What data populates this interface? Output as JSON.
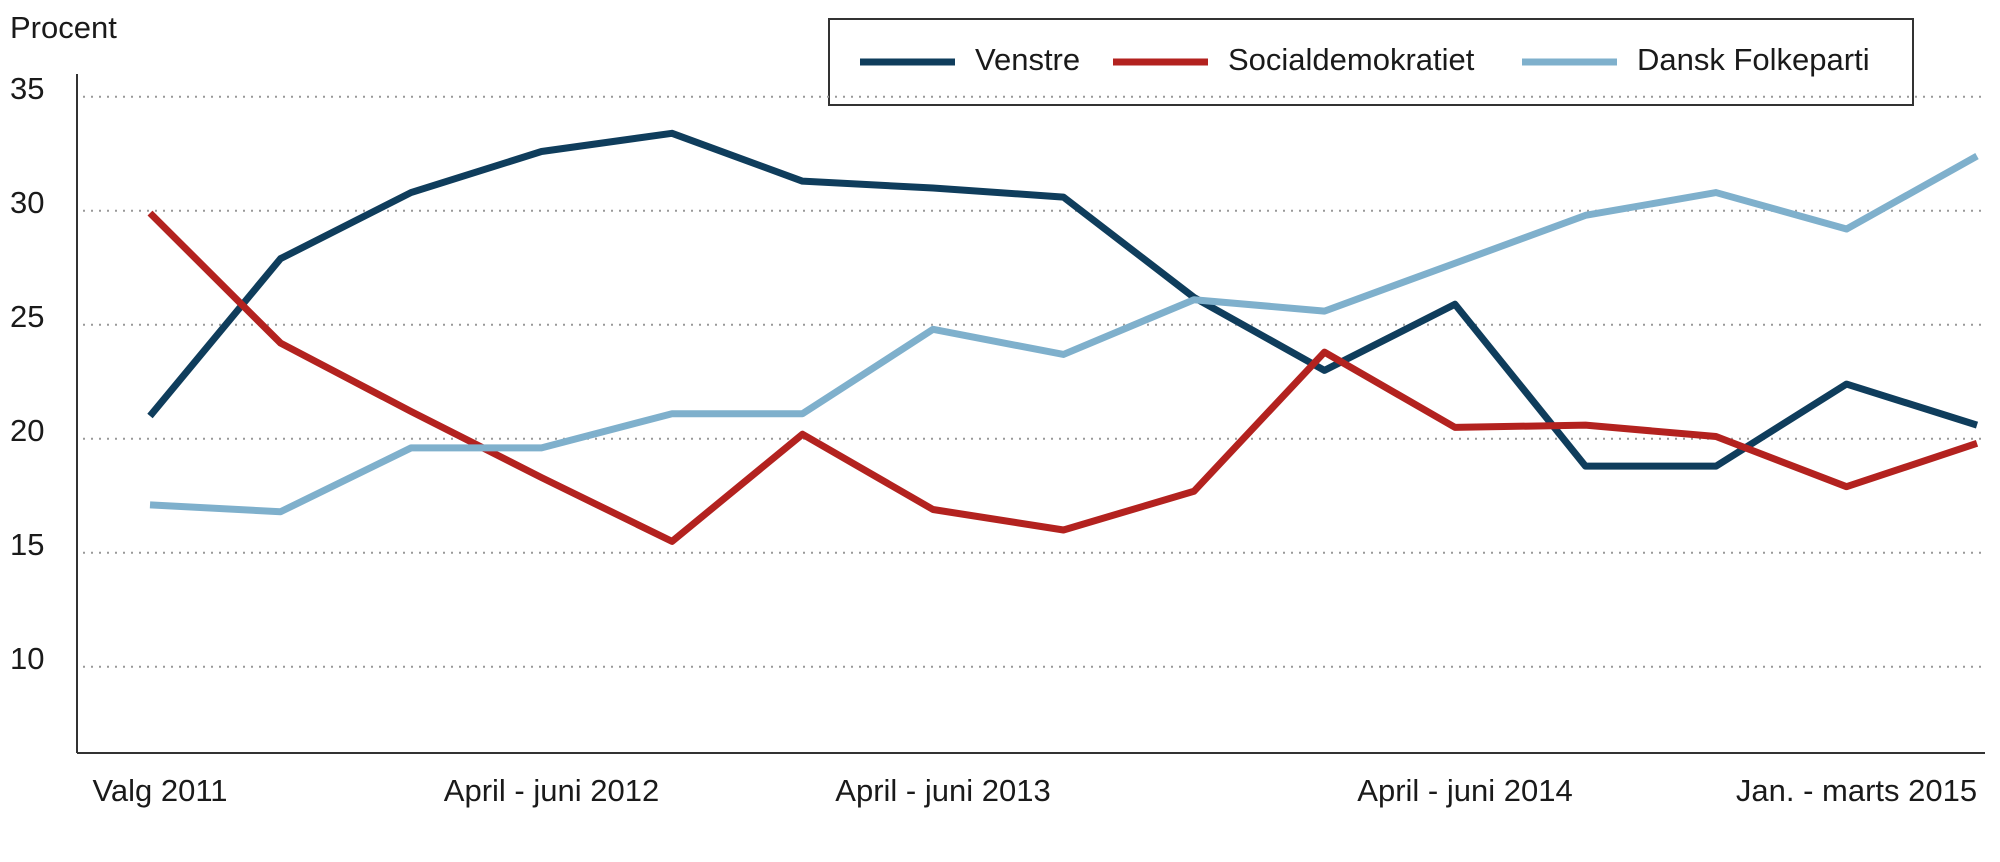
{
  "chart_data": {
    "type": "line",
    "y_label": "Procent",
    "categories": [
      "Valg 2011",
      null,
      null,
      "April - juni 2012",
      null,
      null,
      "April - juni 2013",
      null,
      null,
      null,
      "April - juni 2014",
      null,
      null,
      "Jan. - marts 2015",
      null
    ],
    "series": [
      {
        "name": "Venstre",
        "color": "#0f3d5c",
        "values": [
          21.0,
          27.9,
          30.8,
          32.6,
          33.4,
          31.3,
          31.0,
          30.6,
          26.2,
          23.0,
          25.9,
          18.8,
          18.8,
          22.4,
          20.6
        ]
      },
      {
        "name": "Socialdemokratiet",
        "color": "#b3221f",
        "values": [
          29.9,
          24.2,
          21.2,
          18.3,
          15.5,
          20.2,
          16.9,
          16.0,
          17.7,
          23.8,
          20.5,
          20.6,
          20.1,
          17.9,
          19.8
        ]
      },
      {
        "name": "Dansk Folkeparti",
        "color": "#7fb0cc",
        "values": [
          17.1,
          16.8,
          19.6,
          19.6,
          21.1,
          21.1,
          24.8,
          23.7,
          26.1,
          25.6,
          27.7,
          29.8,
          30.8,
          29.2,
          32.4
        ]
      }
    ],
    "ylim": [
      6,
      36
    ],
    "yticks": [
      10,
      15,
      20,
      25,
      30,
      35
    ],
    "grid": true
  }
}
